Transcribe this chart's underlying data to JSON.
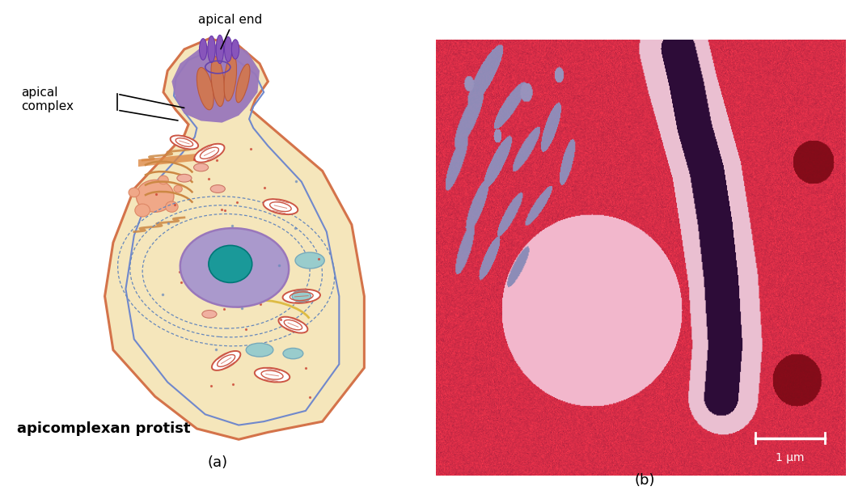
{
  "figure_width": 10.56,
  "figure_height": 6.12,
  "dpi": 100,
  "background_color": "#ffffff",
  "panel_a_label": "(a)",
  "panel_b_label": "(b)",
  "label_fontsize": 13,
  "annotation_fontsize": 11,
  "cell_label": "apicomplexan protist",
  "scale_bar_text": "1 μm",
  "outer_membrane": "#d4734a",
  "inner_membrane": "#7088cc",
  "cytoplasm": "#f5e6bb",
  "apical_purple": "#8866bb",
  "apical_purple_dark": "#7755aa",
  "nucleus_fill": "#aa99cc",
  "nucleolus_fill": "#1a9999",
  "mito_color": "#cc5544",
  "golgi_orange": "#cc8844",
  "vacuole_blue": "#99cccc",
  "er_blue": "#6688bb"
}
